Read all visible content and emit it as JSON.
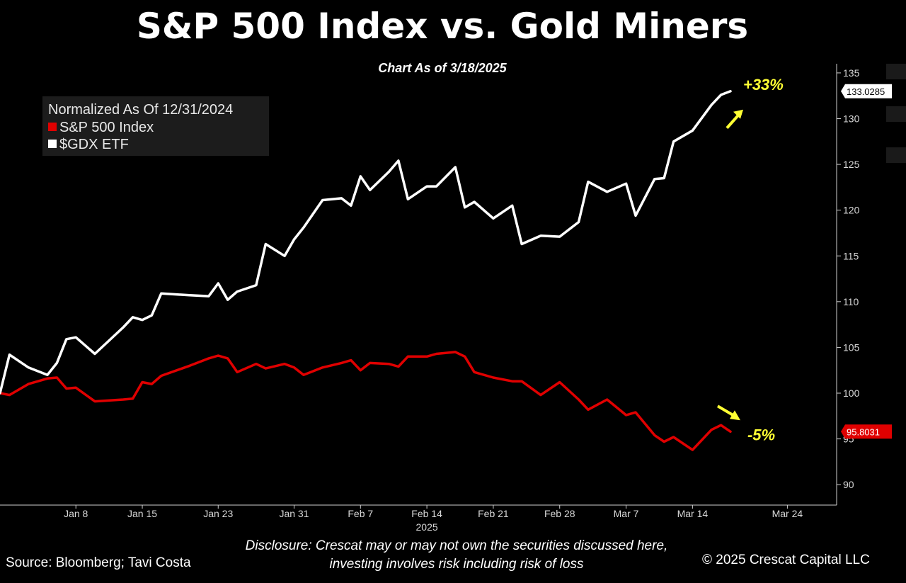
{
  "title": "S&P 500 Index vs. Gold Miners",
  "subtitle": "Chart As of 3/18/2025",
  "legend": {
    "header": "Normalized As Of 12/31/2024",
    "items": [
      {
        "label": "S&P 500 Index",
        "color": "#e00000"
      },
      {
        "label": "$GDX ETF",
        "color": "#ffffff"
      }
    ]
  },
  "footer": {
    "source": "Source: Bloomberg; Tavi Costa",
    "disclosure_line1": "Disclosure: Crescat may or may not own the securities discussed here,",
    "disclosure_line2": "investing involves risk including risk of loss",
    "copyright": "© 2025 Crescat Capital LLC"
  },
  "chart_data": {
    "type": "line",
    "title": "S&P 500 Index vs. Gold Miners",
    "subtitle": "Chart As of 3/18/2025",
    "ylim": [
      88,
      136
    ],
    "yticks": [
      90,
      95,
      100,
      105,
      110,
      115,
      120,
      125,
      130,
      135
    ],
    "yaxis_side": "right",
    "xlim": [
      "2024-12-31",
      "2025-03-28"
    ],
    "xticks": [
      {
        "date": "2025-01-08",
        "label": "Jan 8"
      },
      {
        "date": "2025-01-15",
        "label": "Jan 15"
      },
      {
        "date": "2025-01-23",
        "label": "Jan 23"
      },
      {
        "date": "2025-01-31",
        "label": "Jan 31"
      },
      {
        "date": "2025-02-07",
        "label": "Feb 7"
      },
      {
        "date": "2025-02-14",
        "label": "Feb 14"
      },
      {
        "date": "2025-02-21",
        "label": "Feb 21"
      },
      {
        "date": "2025-02-28",
        "label": "Feb 28"
      },
      {
        "date": "2025-03-07",
        "label": "Mar 7"
      },
      {
        "date": "2025-03-14",
        "label": "Mar 14"
      },
      {
        "date": "2025-03-24",
        "label": "Mar 24"
      }
    ],
    "year_label": {
      "date": "2025-02-14",
      "label": "2025"
    },
    "grid": false,
    "legend_position": "top-left",
    "series": [
      {
        "name": "S&P 500 Index",
        "color": "#e00000",
        "last_value_label": "95.8031",
        "annotation": "-5%",
        "points": [
          [
            "2024-12-31",
            100.0
          ],
          [
            "2025-01-01",
            99.8
          ],
          [
            "2025-01-03",
            101.0
          ],
          [
            "2025-01-05",
            101.6
          ],
          [
            "2025-01-06",
            101.7
          ],
          [
            "2025-01-07",
            100.5
          ],
          [
            "2025-01-08",
            100.6
          ],
          [
            "2025-01-10",
            99.1
          ],
          [
            "2025-01-13",
            99.3
          ],
          [
            "2025-01-14",
            99.4
          ],
          [
            "2025-01-15",
            101.2
          ],
          [
            "2025-01-16",
            101.0
          ],
          [
            "2025-01-17",
            101.9
          ],
          [
            "2025-01-20",
            103.0
          ],
          [
            "2025-01-22",
            103.8
          ],
          [
            "2025-01-23",
            104.1
          ],
          [
            "2025-01-24",
            103.8
          ],
          [
            "2025-01-25",
            102.3
          ],
          [
            "2025-01-27",
            103.2
          ],
          [
            "2025-01-28",
            102.7
          ],
          [
            "2025-01-30",
            103.2
          ],
          [
            "2025-01-31",
            102.8
          ],
          [
            "2025-02-01",
            102.0
          ],
          [
            "2025-02-03",
            102.8
          ],
          [
            "2025-02-05",
            103.3
          ],
          [
            "2025-02-06",
            103.6
          ],
          [
            "2025-02-07",
            102.5
          ],
          [
            "2025-02-08",
            103.3
          ],
          [
            "2025-02-10",
            103.2
          ],
          [
            "2025-02-11",
            102.9
          ],
          [
            "2025-02-12",
            104.0
          ],
          [
            "2025-02-14",
            104.0
          ],
          [
            "2025-02-15",
            104.3
          ],
          [
            "2025-02-17",
            104.5
          ],
          [
            "2025-02-18",
            104.0
          ],
          [
            "2025-02-19",
            102.3
          ],
          [
            "2025-02-21",
            101.7
          ],
          [
            "2025-02-23",
            101.3
          ],
          [
            "2025-02-24",
            101.3
          ],
          [
            "2025-02-26",
            99.8
          ],
          [
            "2025-02-28",
            101.2
          ],
          [
            "2025-03-02",
            99.3
          ],
          [
            "2025-03-03",
            98.2
          ],
          [
            "2025-03-05",
            99.3
          ],
          [
            "2025-03-07",
            97.6
          ],
          [
            "2025-03-08",
            97.9
          ],
          [
            "2025-03-10",
            95.4
          ],
          [
            "2025-03-11",
            94.7
          ],
          [
            "2025-03-12",
            95.2
          ],
          [
            "2025-03-14",
            93.8
          ],
          [
            "2025-03-16",
            96.0
          ],
          [
            "2025-03-17",
            96.5
          ],
          [
            "2025-03-18",
            95.8
          ]
        ]
      },
      {
        "name": "$GDX ETF",
        "color": "#ffffff",
        "last_value_label": "133.0285",
        "annotation": "+33%",
        "points": [
          [
            "2024-12-31",
            100.0
          ],
          [
            "2025-01-01",
            104.2
          ],
          [
            "2025-01-03",
            102.8
          ],
          [
            "2025-01-05",
            102.0
          ],
          [
            "2025-01-06",
            103.3
          ],
          [
            "2025-01-07",
            105.9
          ],
          [
            "2025-01-08",
            106.1
          ],
          [
            "2025-01-10",
            104.3
          ],
          [
            "2025-01-13",
            107.2
          ],
          [
            "2025-01-14",
            108.3
          ],
          [
            "2025-01-15",
            108.0
          ],
          [
            "2025-01-16",
            108.5
          ],
          [
            "2025-01-17",
            110.9
          ],
          [
            "2025-01-20",
            110.7
          ],
          [
            "2025-01-22",
            110.6
          ],
          [
            "2025-01-23",
            112.0
          ],
          [
            "2025-01-24",
            110.2
          ],
          [
            "2025-01-25",
            111.1
          ],
          [
            "2025-01-27",
            111.8
          ],
          [
            "2025-01-28",
            116.3
          ],
          [
            "2025-01-30",
            115.0
          ],
          [
            "2025-01-31",
            116.8
          ],
          [
            "2025-02-01",
            118.1
          ],
          [
            "2025-02-03",
            121.1
          ],
          [
            "2025-02-05",
            121.3
          ],
          [
            "2025-02-06",
            120.5
          ],
          [
            "2025-02-07",
            123.7
          ],
          [
            "2025-02-08",
            122.2
          ],
          [
            "2025-02-10",
            124.2
          ],
          [
            "2025-02-11",
            125.4
          ],
          [
            "2025-02-12",
            121.2
          ],
          [
            "2025-02-14",
            122.6
          ],
          [
            "2025-02-15",
            122.6
          ],
          [
            "2025-02-17",
            124.7
          ],
          [
            "2025-02-18",
            120.3
          ],
          [
            "2025-02-19",
            120.9
          ],
          [
            "2025-02-21",
            119.1
          ],
          [
            "2025-02-23",
            120.5
          ],
          [
            "2025-02-24",
            116.3
          ],
          [
            "2025-02-26",
            117.2
          ],
          [
            "2025-02-28",
            117.1
          ],
          [
            "2025-03-02",
            118.7
          ],
          [
            "2025-03-03",
            123.1
          ],
          [
            "2025-03-05",
            122.0
          ],
          [
            "2025-03-07",
            122.9
          ],
          [
            "2025-03-08",
            119.4
          ],
          [
            "2025-03-10",
            123.4
          ],
          [
            "2025-03-11",
            123.5
          ],
          [
            "2025-03-12",
            127.5
          ],
          [
            "2025-03-14",
            128.7
          ],
          [
            "2025-03-16",
            131.5
          ],
          [
            "2025-03-17",
            132.6
          ],
          [
            "2025-03-18",
            133.0
          ]
        ]
      }
    ]
  }
}
